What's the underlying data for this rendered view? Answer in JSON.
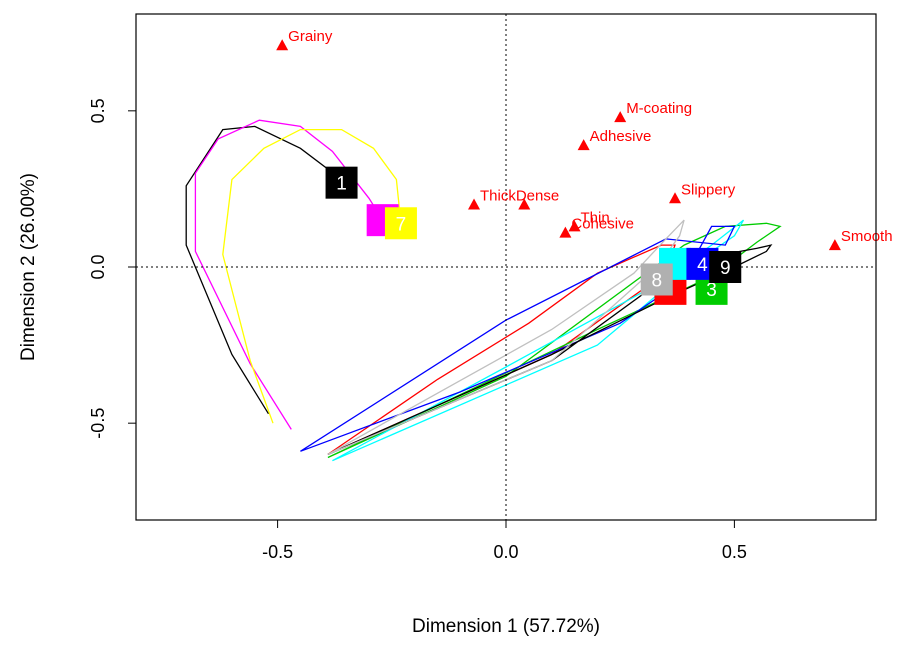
{
  "chart_data": {
    "type": "scatter",
    "title": "",
    "xlabel": "Dimension 1 (57.72%)",
    "ylabel": "Dimension 2 (26.00%)",
    "xlim": [
      -0.81,
      0.81
    ],
    "ylim": [
      -0.81,
      0.81
    ],
    "xticks": [
      -0.5,
      0.0,
      0.5
    ],
    "yticks": [
      -0.5,
      0.0,
      0.5
    ],
    "xtick_labels": [
      "-0.5",
      "0.0",
      "0.5"
    ],
    "ytick_labels": [
      "-0.5",
      "0.0",
      "0.5"
    ],
    "reference_lines": {
      "x": 0,
      "y": 0,
      "style": "dotted"
    },
    "attribute_color": "#ff0000",
    "attributes": [
      {
        "name": "Grainy",
        "x": -0.49,
        "y": 0.71
      },
      {
        "name": "M-coating",
        "x": 0.25,
        "y": 0.48
      },
      {
        "name": "Adhesive",
        "x": 0.17,
        "y": 0.39
      },
      {
        "name": "ThickDense",
        "x": -0.07,
        "y": 0.2
      },
      {
        "name": "Slippery",
        "x": 0.37,
        "y": 0.22
      },
      {
        "name": "Thin",
        "x": 0.15,
        "y": 0.13
      },
      {
        "name": "Cohesive",
        "x": 0.13,
        "y": 0.11
      },
      {
        "name": "Smooth",
        "x": 0.72,
        "y": 0.07
      },
      {
        "name": "",
        "x": 0.04,
        "y": 0.2
      }
    ],
    "products": [
      {
        "label": "1",
        "color": "#000000",
        "text_color": "#ffffff",
        "x": -0.36,
        "y": 0.27
      },
      {
        "label": "",
        "color": "#ff00ff",
        "text_color": "#ffffff",
        "x": -0.27,
        "y": 0.15
      },
      {
        "label": "7",
        "color": "#ffff00",
        "text_color": "#ffffff",
        "x": -0.23,
        "y": 0.14
      },
      {
        "label": "",
        "color": "#ff0000",
        "text_color": "#ffffff",
        "x": 0.36,
        "y": -0.07
      },
      {
        "label": "3",
        "color": "#00cc00",
        "text_color": "#ffffff",
        "x": 0.45,
        "y": -0.07
      },
      {
        "label": "",
        "color": "#00ffff",
        "text_color": "#ffffff",
        "x": 0.37,
        "y": 0.01
      },
      {
        "label": "4",
        "color": "#0000ff",
        "text_color": "#ffffff",
        "x": 0.43,
        "y": 0.01
      },
      {
        "label": "9",
        "color": "#000000",
        "text_color": "#ffffff",
        "x": 0.48,
        "y": 0.0
      },
      {
        "label": "8",
        "color": "#b0b0b0",
        "text_color": "#ffffff",
        "x": 0.33,
        "y": -0.04
      }
    ],
    "series": [
      {
        "color": "#000000",
        "points": [
          [
            -0.52,
            -0.47
          ],
          [
            -0.6,
            -0.28
          ],
          [
            -0.7,
            0.07
          ],
          [
            -0.7,
            0.26
          ],
          [
            -0.62,
            0.44
          ],
          [
            -0.55,
            0.45
          ],
          [
            -0.45,
            0.38
          ],
          [
            -0.36,
            0.28
          ]
        ]
      },
      {
        "color": "#ff00ff",
        "points": [
          [
            -0.47,
            -0.52
          ],
          [
            -0.56,
            -0.31
          ],
          [
            -0.68,
            0.05
          ],
          [
            -0.68,
            0.3
          ],
          [
            -0.63,
            0.41
          ],
          [
            -0.54,
            0.47
          ],
          [
            -0.45,
            0.45
          ],
          [
            -0.38,
            0.37
          ],
          [
            -0.3,
            0.22
          ],
          [
            -0.27,
            0.15
          ]
        ]
      },
      {
        "color": "#ffff00",
        "points": [
          [
            -0.51,
            -0.5
          ],
          [
            -0.56,
            -0.3
          ],
          [
            -0.62,
            0.04
          ],
          [
            -0.6,
            0.28
          ],
          [
            -0.53,
            0.38
          ],
          [
            -0.45,
            0.44
          ],
          [
            -0.36,
            0.44
          ],
          [
            -0.29,
            0.38
          ],
          [
            -0.24,
            0.28
          ],
          [
            -0.23,
            0.14
          ]
        ]
      },
      {
        "color": "#ff0000",
        "points": [
          [
            -0.39,
            -0.6
          ],
          [
            -0.15,
            -0.36
          ],
          [
            0.05,
            -0.18
          ],
          [
            0.2,
            -0.02
          ],
          [
            0.34,
            0.07
          ],
          [
            0.37,
            0.07
          ],
          [
            0.36,
            0.03
          ],
          [
            0.32,
            -0.05
          ],
          [
            0.1,
            -0.28
          ],
          [
            -0.39,
            -0.6
          ]
        ]
      },
      {
        "color": "#00cc00",
        "points": [
          [
            -0.39,
            -0.61
          ],
          [
            0.2,
            -0.2
          ],
          [
            0.45,
            -0.03
          ],
          [
            0.55,
            0.08
          ],
          [
            0.6,
            0.13
          ],
          [
            0.57,
            0.14
          ],
          [
            0.48,
            0.13
          ],
          [
            0.39,
            0.07
          ],
          [
            0.0,
            -0.35
          ],
          [
            -0.39,
            -0.61
          ]
        ]
      },
      {
        "color": "#00ffff",
        "points": [
          [
            -0.38,
            -0.62
          ],
          [
            0.0,
            -0.32
          ],
          [
            0.3,
            -0.08
          ],
          [
            0.45,
            0.07
          ],
          [
            0.52,
            0.15
          ],
          [
            0.5,
            0.1
          ],
          [
            0.42,
            0.02
          ],
          [
            0.2,
            -0.25
          ],
          [
            -0.38,
            -0.62
          ]
        ]
      },
      {
        "color": "#0000ff",
        "points": [
          [
            -0.45,
            -0.59
          ],
          [
            -0.1,
            -0.4
          ],
          [
            0.25,
            -0.18
          ],
          [
            0.38,
            -0.05
          ],
          [
            0.42,
            0.05
          ],
          [
            0.45,
            0.13
          ],
          [
            0.5,
            0.13
          ],
          [
            0.48,
            0.07
          ],
          [
            0.35,
            0.09
          ],
          [
            0.0,
            -0.17
          ],
          [
            -0.45,
            -0.59
          ]
        ]
      },
      {
        "color": "#000000",
        "points": [
          [
            -0.39,
            -0.6
          ],
          [
            0.1,
            -0.28
          ],
          [
            0.35,
            -0.1
          ],
          [
            0.5,
            0.0
          ],
          [
            0.57,
            0.05
          ],
          [
            0.58,
            0.07
          ],
          [
            0.55,
            0.06
          ],
          [
            0.4,
            0.02
          ],
          [
            0.1,
            -0.3
          ],
          [
            -0.39,
            -0.6
          ]
        ]
      },
      {
        "color": "#c0c0c0",
        "points": [
          [
            -0.39,
            -0.6
          ],
          [
            0.1,
            -0.2
          ],
          [
            0.28,
            -0.02
          ],
          [
            0.35,
            0.09
          ],
          [
            0.39,
            0.15
          ],
          [
            0.38,
            0.1
          ],
          [
            0.33,
            0.0
          ],
          [
            0.1,
            -0.3
          ],
          [
            -0.39,
            -0.6
          ]
        ]
      }
    ]
  }
}
